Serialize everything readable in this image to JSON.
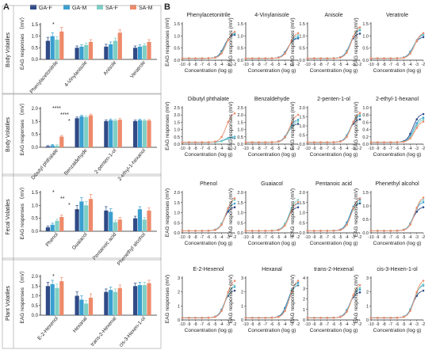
{
  "panel_a_label": "A",
  "panel_b_label": "B",
  "legend": [
    {
      "name": "GA-F",
      "color": "#2f4a86"
    },
    {
      "name": "GA-M",
      "color": "#3a9fd0"
    },
    {
      "name": "SA-F",
      "color": "#7ecfc6"
    },
    {
      "name": "SA-M",
      "color": "#ee8a6a"
    }
  ],
  "chart_data": [
    {
      "type": "bar",
      "row_label": "Body Volatiles",
      "ylabel": "EAG responses （mV）",
      "ylim": [
        0,
        1.5
      ],
      "yticks": [
        "0.0",
        "0.5",
        "1.0",
        "1.5"
      ],
      "categories": [
        "Phenylacetonitrile",
        "4-Vinylanisole",
        "Anisole",
        "Veratrole"
      ],
      "series": [
        {
          "name": "GA-F",
          "values": [
            0.8,
            0.5,
            0.55,
            0.5
          ],
          "errors": [
            0.15,
            0.08,
            0.1,
            0.08
          ]
        },
        {
          "name": "GA-M",
          "values": [
            1.0,
            0.55,
            0.65,
            0.55
          ],
          "errors": [
            0.15,
            0.08,
            0.1,
            0.08
          ]
        },
        {
          "name": "SA-F",
          "values": [
            0.85,
            0.62,
            0.8,
            0.6
          ],
          "errors": [
            0.12,
            0.08,
            0.12,
            0.08
          ]
        },
        {
          "name": "SA-M",
          "values": [
            1.2,
            0.75,
            1.15,
            0.75
          ],
          "errors": [
            0.18,
            0.1,
            0.12,
            0.1
          ]
        }
      ],
      "annotations": [
        "*"
      ]
    },
    {
      "type": "bar",
      "row_label": "Body Volatiles",
      "ylabel": "EAG responses （mV）",
      "ylim": [
        0,
        2.0
      ],
      "yticks": [
        "0.0",
        "0.5",
        "1.5",
        "2.0"
      ],
      "categories": [
        "Dibutyl phthalate",
        "Benzaldehyde",
        "2-penten-1-ol",
        "2-ethyl-1-hexanol"
      ],
      "series": [
        {
          "name": "GA-F",
          "values": [
            0.05,
            1.5,
            1.35,
            1.35
          ],
          "errors": [
            0.04,
            0.06,
            0.06,
            0.05
          ]
        },
        {
          "name": "GA-M",
          "values": [
            0.1,
            1.6,
            1.4,
            1.4
          ],
          "errors": [
            0.05,
            0.06,
            0.06,
            0.05
          ]
        },
        {
          "name": "SA-F",
          "values": [
            0.08,
            1.55,
            1.38,
            1.38
          ],
          "errors": [
            0.05,
            0.06,
            0.06,
            0.05
          ]
        },
        {
          "name": "SA-M",
          "values": [
            0.55,
            1.65,
            1.42,
            1.38
          ],
          "errors": [
            0.06,
            0.06,
            0.06,
            0.05
          ]
        }
      ],
      "annotations": [
        "****",
        "****",
        "*"
      ]
    },
    {
      "type": "bar",
      "row_label": "Fecal Volatiles",
      "ylabel": "EAG responses （mV）",
      "ylim": [
        0,
        1.5
      ],
      "yticks": [
        "0.0",
        "0.5",
        "1.0",
        "1.5"
      ],
      "categories": [
        "Phenol",
        "Guaiacol",
        "Pentanoic acid",
        "Phenethyl alcohol"
      ],
      "series": [
        {
          "name": "GA-F",
          "values": [
            0.15,
            0.85,
            0.8,
            0.5
          ],
          "errors": [
            0.05,
            0.15,
            0.15,
            0.08
          ]
        },
        {
          "name": "GA-M",
          "values": [
            0.25,
            1.15,
            0.75,
            0.85
          ],
          "errors": [
            0.06,
            0.15,
            0.12,
            0.1
          ]
        },
        {
          "name": "SA-F",
          "values": [
            0.4,
            1.0,
            0.35,
            0.45
          ],
          "errors": [
            0.06,
            0.15,
            0.08,
            0.08
          ]
        },
        {
          "name": "SA-M",
          "values": [
            0.55,
            1.25,
            0.45,
            0.8
          ],
          "errors": [
            0.08,
            0.18,
            0.08,
            0.1
          ]
        }
      ],
      "annotations": [
        "*",
        "**",
        "*",
        "*"
      ]
    },
    {
      "type": "bar",
      "row_label": "Plant Volatiles",
      "ylabel": "EAG responses （mV）",
      "ylim": [
        0,
        2.0
      ],
      "yticks": [
        "0.0",
        "0.5",
        "1.0",
        "1.5",
        "2.0"
      ],
      "categories": [
        "E-2-Hexenol",
        "Hexanal",
        "trans-2-Hexenal",
        "cis-3-Hexen-1-ol"
      ],
      "series": [
        {
          "name": "GA-F",
          "values": [
            1.5,
            1.0,
            1.2,
            1.5
          ],
          "errors": [
            0.2,
            0.2,
            0.15,
            0.15
          ]
        },
        {
          "name": "GA-M",
          "values": [
            1.6,
            0.8,
            1.3,
            1.55
          ],
          "errors": [
            0.2,
            0.2,
            0.15,
            0.15
          ]
        },
        {
          "name": "SA-F",
          "values": [
            1.4,
            0.6,
            1.2,
            1.55
          ],
          "errors": [
            0.2,
            0.15,
            0.15,
            0.15
          ]
        },
        {
          "name": "SA-M",
          "values": [
            1.75,
            0.9,
            1.4,
            1.65
          ],
          "errors": [
            0.2,
            0.2,
            0.15,
            0.15
          ]
        }
      ],
      "annotations": [
        "*"
      ]
    },
    {
      "type": "line",
      "xlabel": "Concentration (log g)",
      "ylabel": "EAG responses (mV)",
      "xticks": [
        "-10",
        "-9",
        "-8",
        "-7",
        "-6",
        "-5",
        "-4",
        "-3",
        "-2"
      ],
      "panels": [
        {
          "title": "Phenylacetonitrile",
          "ylim": [
            0,
            1.5
          ],
          "yticks": [
            "0.0",
            "0.5",
            "1.0",
            "1.5"
          ],
          "plateaus": [
            1.0,
            1.05,
            1.1,
            1.15
          ]
        },
        {
          "title": "4-Vinylanisole",
          "ylim": [
            0,
            1.5
          ],
          "yticks": [
            "0.0",
            "0.5",
            "1.0",
            "1.5"
          ],
          "plateaus": [
            0.85,
            0.9,
            1.0,
            1.1
          ]
        },
        {
          "title": "Anisole",
          "ylim": [
            0,
            1.5
          ],
          "yticks": [
            "0.0",
            "0.5",
            "1.0",
            "1.5"
          ],
          "plateaus": [
            1.05,
            1.2,
            1.25,
            1.35
          ]
        },
        {
          "title": "Veratrole",
          "ylim": [
            0,
            1.5
          ],
          "yticks": [
            "0.0",
            "0.5",
            "1.0",
            "1.5"
          ],
          "plateaus": [
            0.9,
            1.0,
            1.05,
            1.1
          ]
        },
        {
          "title": "Dibutyl phthalate",
          "ylim": [
            0,
            2.5
          ],
          "yticks": [
            "0.0",
            "0.5",
            "1.0",
            "1.5",
            "2.0",
            "2.5"
          ],
          "plateaus": [
            0.3,
            0.4,
            0.35,
            2.1
          ]
        },
        {
          "title": "Benzaldehyde",
          "ylim": [
            0,
            2.5
          ],
          "yticks": [
            "0.0",
            "0.5",
            "1.0",
            "1.5",
            "2.0",
            "2.5"
          ],
          "plateaus": [
            1.3,
            1.6,
            1.5,
            2.0
          ]
        },
        {
          "title": "2-penten-1-ol",
          "ylim": [
            0,
            2.0
          ],
          "yticks": [
            "0.0",
            "0.5",
            "1.0",
            "1.5",
            "2.0"
          ],
          "plateaus": [
            1.3,
            1.5,
            1.6,
            1.7
          ]
        },
        {
          "title": "2-ethyl-1-hexanol",
          "ylim": [
            0,
            1.0
          ],
          "yticks": [
            "0.0",
            "0.2",
            "0.4",
            "0.6",
            "0.8",
            "1.0"
          ],
          "plateaus": [
            0.8,
            0.7,
            0.65,
            0.6
          ]
        },
        {
          "title": "Phenol",
          "ylim": [
            0,
            2.0
          ],
          "yticks": [
            "0.0",
            "0.5",
            "1.0",
            "1.5",
            "2.0"
          ],
          "plateaus": [
            1.2,
            1.4,
            1.6,
            1.7
          ]
        },
        {
          "title": "Guaiacol",
          "ylim": [
            0,
            2.0
          ],
          "yticks": [
            "0.0",
            "0.5",
            "1.0",
            "1.5",
            "2.0"
          ],
          "plateaus": [
            1.2,
            1.4,
            1.6,
            1.5
          ]
        },
        {
          "title": "Pentanoic acid",
          "ylim": [
            0,
            2.0
          ],
          "yticks": [
            "0.0",
            "0.5",
            "1.0",
            "1.5",
            "2.0"
          ],
          "plateaus": [
            1.4,
            1.6,
            1.5,
            1.7
          ]
        },
        {
          "title": "Phenethyl alcohol",
          "ylim": [
            0,
            1.5
          ],
          "yticks": [
            "0.0",
            "0.5",
            "1.0",
            "1.5"
          ],
          "plateaus": [
            0.9,
            1.1,
            1.2,
            1.3
          ]
        },
        {
          "title": "E-2-Hexenol",
          "ylim": [
            0,
            3
          ],
          "yticks": [
            "0",
            "1",
            "2",
            "3"
          ],
          "plateaus": [
            2.0,
            2.3,
            2.4,
            2.8
          ]
        },
        {
          "title": "Hexanal",
          "ylim": [
            0,
            3
          ],
          "yticks": [
            "0",
            "1",
            "2",
            "3"
          ],
          "plateaus": [
            2.4,
            2.6,
            2.5,
            2.8
          ]
        },
        {
          "title": "trans-2-Hexenal",
          "ylim": [
            0,
            4
          ],
          "yticks": [
            "0",
            "1",
            "2",
            "3",
            "4"
          ],
          "plateaus": [
            2.5,
            2.8,
            3.0,
            3.3
          ]
        },
        {
          "title": "cis-3-Hexen-1-ol",
          "ylim": [
            0,
            3
          ],
          "yticks": [
            "0",
            "1",
            "2",
            "3"
          ],
          "plateaus": [
            2.0,
            2.4,
            2.5,
            2.8
          ]
        }
      ]
    }
  ]
}
